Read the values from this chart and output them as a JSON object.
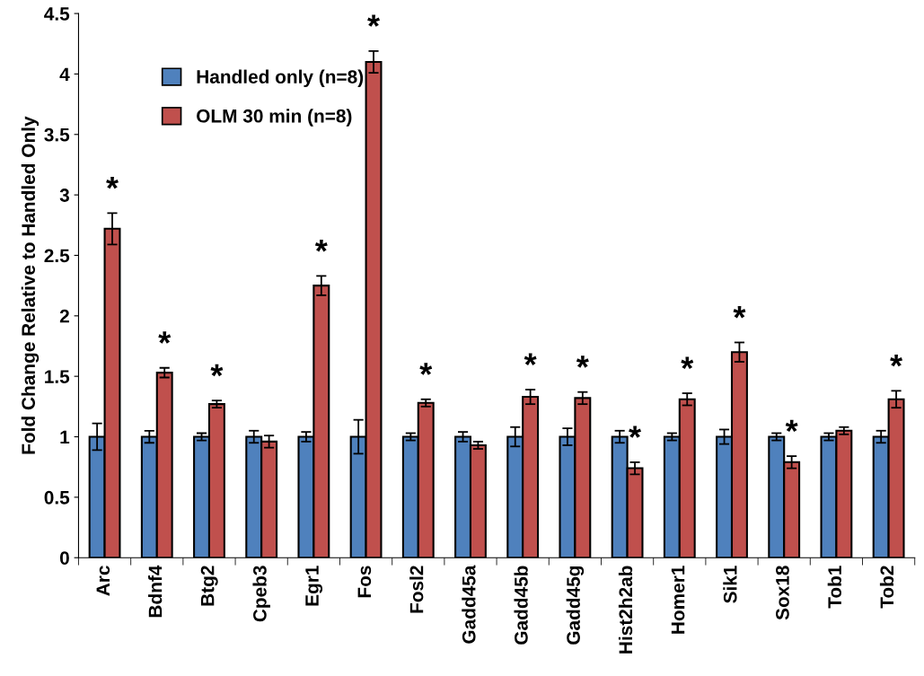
{
  "chart_data": {
    "type": "bar",
    "ylabel": "Fold Change Relative to Handled Only",
    "categories": [
      "Arc",
      "Bdnf4",
      "Btg2",
      "Cpeb3",
      "Egr1",
      "Fos",
      "Fosl2",
      "Gadd45a",
      "Gadd45b",
      "Gadd45g",
      "Hist2h2ab",
      "Homer1",
      "Sik1",
      "Sox18",
      "Tob1",
      "Tob2"
    ],
    "series": [
      {
        "name": "Handled only (n=8)",
        "color": "#4f81bd",
        "values": [
          1,
          1,
          1,
          1,
          1,
          1,
          1,
          1,
          1,
          1,
          1,
          1,
          1,
          1,
          1,
          1
        ],
        "errors": [
          0.11,
          0.05,
          0.03,
          0.05,
          0.04,
          0.14,
          0.03,
          0.04,
          0.08,
          0.07,
          0.05,
          0.03,
          0.06,
          0.03,
          0.03,
          0.05
        ]
      },
      {
        "name": "OLM 30 min (n=8)",
        "color": "#c0504d",
        "values": [
          2.72,
          1.53,
          1.27,
          0.96,
          2.25,
          4.1,
          1.28,
          0.93,
          1.33,
          1.32,
          0.74,
          1.31,
          1.7,
          0.79,
          1.05,
          1.31
        ],
        "errors": [
          0.13,
          0.04,
          0.03,
          0.05,
          0.08,
          0.09,
          0.03,
          0.03,
          0.06,
          0.05,
          0.05,
          0.05,
          0.08,
          0.05,
          0.03,
          0.07
        ]
      }
    ],
    "ylim": [
      0,
      4.5
    ],
    "yticks": [
      0,
      0.5,
      1,
      1.5,
      2,
      2.5,
      3,
      3.5,
      4,
      4.5
    ],
    "grid": false,
    "legend": "top left",
    "annotations": [
      {
        "text": "*",
        "x": "Arc",
        "y": 2.72
      },
      {
        "text": "*",
        "x": "Bdnf4",
        "y": 1.53
      },
      {
        "text": "*",
        "x": "Btg2",
        "y": 1.27
      },
      {
        "text": "*",
        "x": "Egr1",
        "y": 2.25
      },
      {
        "text": "*",
        "x": "Fos",
        "y": 4.1
      },
      {
        "text": "*",
        "x": "Fosl2",
        "y": 1.28
      },
      {
        "text": "*",
        "x": "Gadd45b",
        "y": 1.33
      },
      {
        "text": "*",
        "x": "Gadd45g",
        "y": 1.32
      },
      {
        "text": "*",
        "x": "Hist2h2ab",
        "y": 0.74
      },
      {
        "text": "*",
        "x": "Homer1",
        "y": 1.31
      },
      {
        "text": "*",
        "x": "Sik1",
        "y": 1.7
      },
      {
        "text": "*",
        "x": "Sox18",
        "y": 0.79
      },
      {
        "text": "*",
        "x": "Tob2",
        "y": 1.31
      }
    ]
  }
}
